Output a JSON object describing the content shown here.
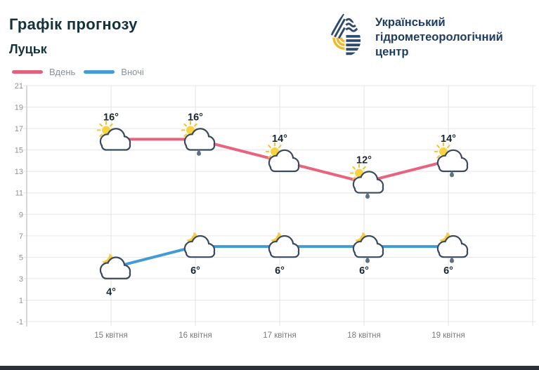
{
  "header": {
    "title": "Графік прогнозу",
    "city": "Луцьк"
  },
  "logo": {
    "org_name_lines": [
      "Український",
      "гідрометеорологічний",
      "центр"
    ],
    "navy": "#2e4a6d",
    "yellow": "#f0b929"
  },
  "legend": {
    "items": [
      {
        "label": "Вдень",
        "color": "#e0637e"
      },
      {
        "label": "Вночі",
        "color": "#459cd3"
      }
    ]
  },
  "chart_data": {
    "type": "line",
    "title": "Графік прогнозу — Луцьк",
    "categories": [
      "15 квітня",
      "16 квітня",
      "17 квітня",
      "18 квітня",
      "19 квітня"
    ],
    "series": [
      {
        "name": "Вдень",
        "color": "#e7637e",
        "values": [
          16,
          16,
          14,
          12,
          14
        ],
        "labels": [
          "16°",
          "16°",
          "14°",
          "12°",
          "14°"
        ],
        "icons": [
          "sun-cloud",
          "sun-cloud-rain",
          "sun-cloud",
          "sun-cloud-rain",
          "sun-cloud-rain"
        ],
        "label_position": "above"
      },
      {
        "name": "Вночі",
        "color": "#429bd3",
        "values": [
          4,
          6,
          6,
          6,
          6
        ],
        "labels": [
          "4°",
          "6°",
          "6°",
          "6°",
          "6°"
        ],
        "icons": [
          "moon-cloud",
          "moon-cloud",
          "moon-cloud",
          "moon-cloud-rain",
          "moon-cloud-rain"
        ],
        "label_position": "below"
      }
    ],
    "ylim": [
      -1,
      21
    ],
    "ytick_step": 2,
    "yticks": [
      21,
      19,
      17,
      15,
      13,
      11,
      9,
      7,
      5,
      3,
      1,
      -1
    ],
    "grid": true,
    "legend_position": "top-left",
    "colors": {
      "grid": "#e5e5e5",
      "axis": "#c4c4c4",
      "tick_label": "#8f8f8f",
      "x_label": "#7a7a7a",
      "value_label": "#1b2832",
      "cloud_stroke": "#3a4a5e",
      "sun": "#f8d33f",
      "moon": "#f5cd3f",
      "raindrop": "#5f7183"
    }
  },
  "footer": {
    "bar_color": "#2b3036"
  }
}
